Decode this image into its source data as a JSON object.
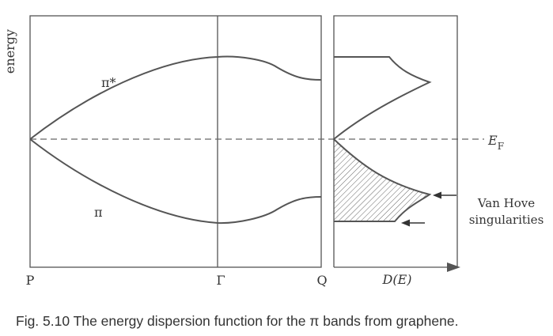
{
  "figure": {
    "y_axis_label": "energy",
    "band_upper_label": "π*",
    "band_lower_label": "π",
    "x_ticks": [
      "P",
      "Γ",
      "Q"
    ],
    "dos_axis_label": "D(E)",
    "fermi_label_main": "E",
    "fermi_label_sub": "F",
    "annotation_line1": "Van Hove",
    "annotation_line2": "singularities",
    "caption": "Fig. 5.10 The energy dispersion function for the π bands from graphene."
  }
}
